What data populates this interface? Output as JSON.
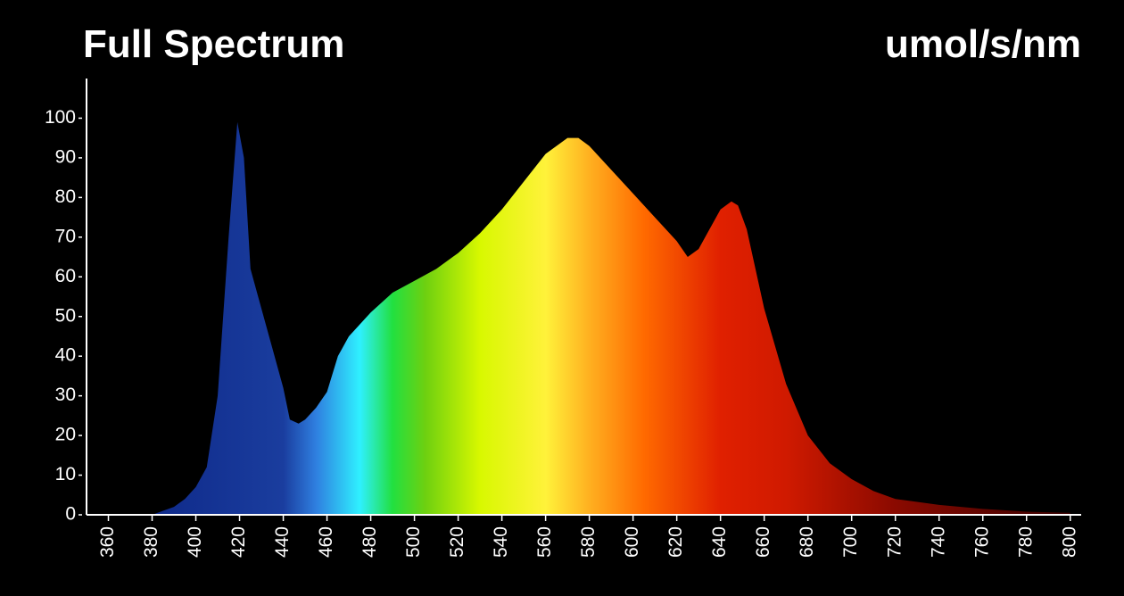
{
  "chart_data": {
    "type": "area",
    "title": "Full Spectrum",
    "unit_label": "umol/s/nm",
    "x": [
      350,
      380,
      385,
      390,
      395,
      400,
      405,
      410,
      415,
      419,
      422,
      425,
      430,
      435,
      440,
      443,
      447,
      450,
      455,
      460,
      465,
      470,
      480,
      490,
      500,
      510,
      520,
      530,
      540,
      550,
      560,
      570,
      575,
      580,
      590,
      600,
      610,
      620,
      625,
      630,
      635,
      640,
      645,
      648,
      652,
      660,
      670,
      680,
      690,
      700,
      710,
      720,
      740,
      760,
      780,
      800
    ],
    "values": [
      0,
      0,
      1,
      2,
      4,
      7,
      12,
      30,
      70,
      99,
      90,
      62,
      52,
      42,
      32,
      24,
      23,
      24,
      27,
      31,
      40,
      45,
      51,
      56,
      59,
      62,
      66,
      71,
      77,
      84,
      91,
      95,
      95,
      93,
      87,
      81,
      75,
      69,
      65,
      67,
      72,
      77,
      79,
      78,
      72,
      52,
      33,
      20,
      13,
      9,
      6,
      4,
      2.5,
      1.5,
      0.8,
      0.5
    ],
    "gradient": [
      {
        "value": 380,
        "color": "#0f2a8a"
      },
      {
        "value": 440,
        "color": "#1a3d9e"
      },
      {
        "value": 455,
        "color": "#2f7fe0"
      },
      {
        "value": 475,
        "color": "#2ff0ff"
      },
      {
        "value": 490,
        "color": "#22e040"
      },
      {
        "value": 505,
        "color": "#6ed010"
      },
      {
        "value": 530,
        "color": "#d8f800"
      },
      {
        "value": 560,
        "color": "#fff23a"
      },
      {
        "value": 580,
        "color": "#ffb020"
      },
      {
        "value": 605,
        "color": "#ff6a00"
      },
      {
        "value": 640,
        "color": "#e02000"
      },
      {
        "value": 670,
        "color": "#d01a00"
      },
      {
        "value": 720,
        "color": "#8a0a00"
      },
      {
        "value": 800,
        "color": "#3a0000"
      }
    ],
    "xlim": [
      350,
      805
    ],
    "ylim": [
      0,
      110
    ],
    "xticks": [
      360,
      380,
      400,
      420,
      440,
      460,
      480,
      500,
      520,
      540,
      560,
      580,
      600,
      620,
      640,
      660,
      680,
      700,
      720,
      740,
      760,
      780,
      800
    ],
    "yticks": [
      0,
      10,
      20,
      30,
      40,
      50,
      60,
      70,
      80,
      90,
      100
    ],
    "axis_color": "#ffffff"
  }
}
